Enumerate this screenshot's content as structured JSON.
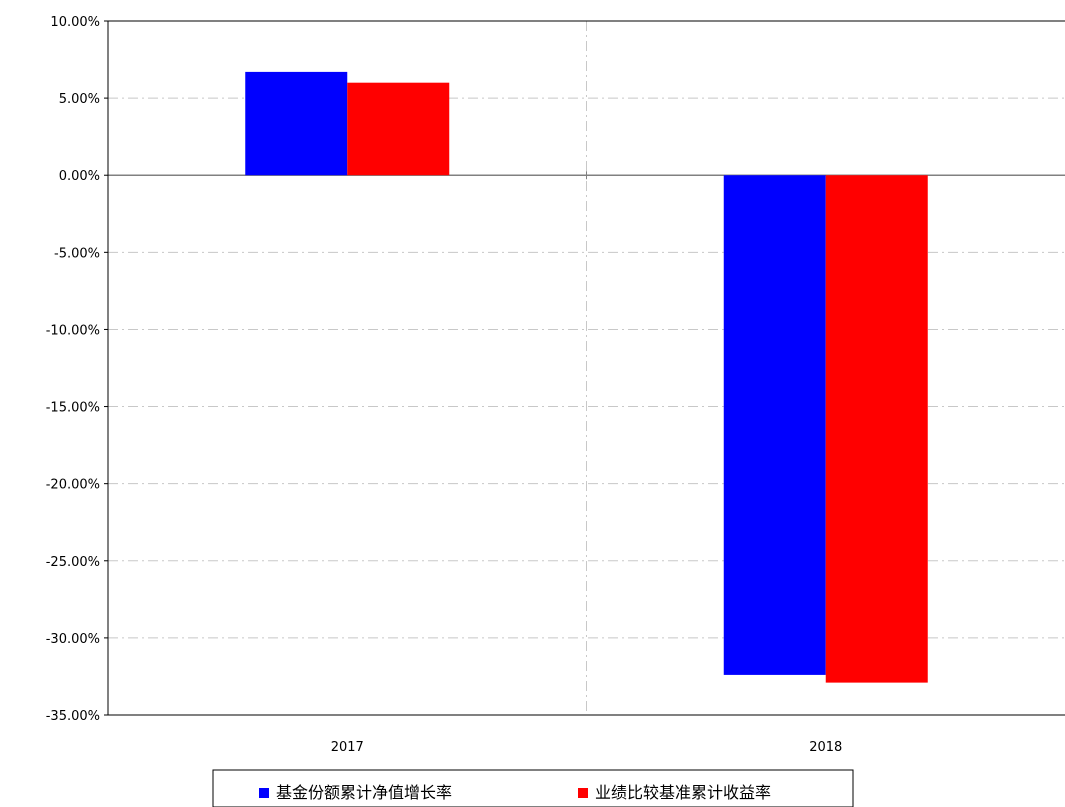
{
  "chart_data": {
    "type": "bar",
    "categories": [
      "2017",
      "2018"
    ],
    "series": [
      {
        "name": "基金份额累计净值增长率",
        "values": [
          6.7,
          -32.4
        ],
        "color": "#0000ff"
      },
      {
        "name": "业绩比较基准累计收益率",
        "values": [
          6.0,
          -32.9
        ],
        "color": "#ff0000"
      }
    ],
    "ylim": [
      -35,
      10
    ],
    "yticks": [
      10,
      5,
      0,
      -5,
      -10,
      -15,
      -20,
      -25,
      -30,
      -35
    ],
    "ytick_labels": [
      "10.00%",
      "5.00%",
      "0.00%",
      "-5.00%",
      "-10.00%",
      "-15.00%",
      "-20.00%",
      "-25.00%",
      "-30.00%",
      "-35.00%"
    ],
    "grid": true,
    "legend_position": "bottom",
    "title": "",
    "xlabel": "",
    "ylabel": ""
  }
}
